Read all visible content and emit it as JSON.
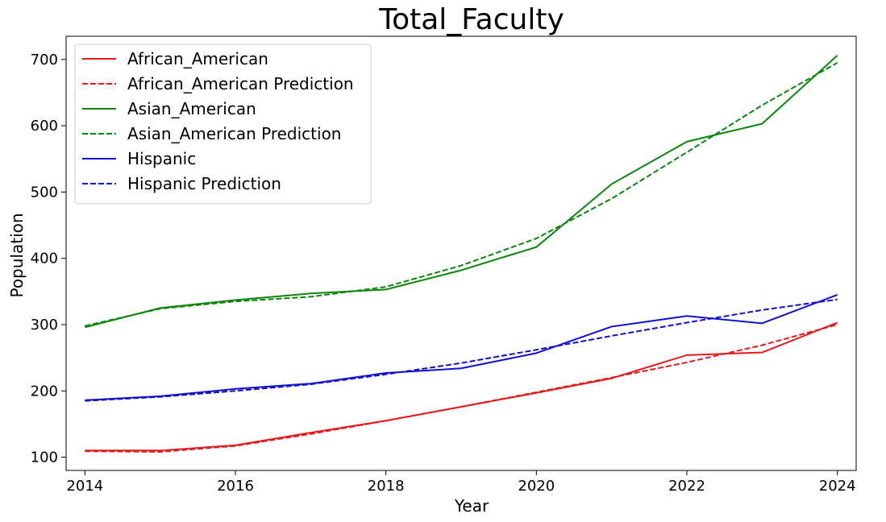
{
  "chart_data": {
    "type": "line",
    "title": "Total_Faculty",
    "xlabel": "Year",
    "ylabel": "Population",
    "x": [
      2014,
      2015,
      2016,
      2017,
      2018,
      2019,
      2020,
      2021,
      2022,
      2023,
      2024
    ],
    "xlim": [
      2013.75,
      2024.25
    ],
    "ylim": [
      80,
      735
    ],
    "xticks": [
      "2014",
      "2016",
      "2018",
      "2020",
      "2022",
      "2024"
    ],
    "yticks": [
      "100",
      "200",
      "300",
      "400",
      "500",
      "600",
      "700"
    ],
    "legend_position": "upper-left",
    "series": [
      {
        "name": "African_American",
        "style": "solid",
        "color": "#e41a1c",
        "values": [
          110,
          110,
          118,
          137,
          155,
          176,
          197,
          219,
          254,
          258,
          303
        ]
      },
      {
        "name": "African_American Prediction",
        "style": "dashed",
        "color": "#e41a1c",
        "values": [
          109,
          108,
          117,
          135,
          155,
          176,
          198,
          220,
          243,
          269,
          300
        ]
      },
      {
        "name": "Asian_American",
        "style": "solid",
        "color": "#0a870a",
        "values": [
          296,
          325,
          337,
          347,
          353,
          382,
          417,
          512,
          576,
          603,
          706
        ]
      },
      {
        "name": "Asian_American Prediction",
        "style": "dashed",
        "color": "#0a870a",
        "values": [
          298,
          324,
          335,
          342,
          357,
          389,
          430,
          490,
          560,
          631,
          695
        ]
      },
      {
        "name": "Hispanic",
        "style": "solid",
        "color": "#1010d0",
        "values": [
          186,
          192,
          203,
          211,
          227,
          234,
          257,
          297,
          313,
          302,
          345
        ]
      },
      {
        "name": "Hispanic Prediction",
        "style": "dashed",
        "color": "#1010d0",
        "values": [
          185,
          191,
          200,
          210,
          225,
          242,
          262,
          283,
          303,
          322,
          338
        ]
      }
    ]
  }
}
